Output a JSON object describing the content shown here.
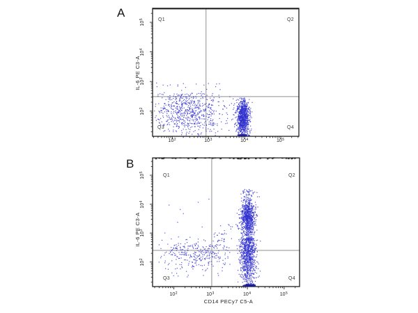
{
  "figure": {
    "panels": [
      {
        "label": "A",
        "y_axis_label": "IL-6 PE C3-A",
        "quadrants": [
          "Q1",
          "Q2",
          "Q3",
          "Q4"
        ]
      },
      {
        "label": "B",
        "y_axis_label": "IL-6 PE C3-A",
        "x_axis_label": "CD14 PECy7 C5-A",
        "quadrants": [
          "Q1",
          "Q2",
          "Q3",
          "Q4"
        ]
      }
    ]
  },
  "chart_data": [
    {
      "type": "scatter",
      "panel": "A",
      "title": "A",
      "xlabel": "",
      "ylabel": "IL-6 PE C3-A",
      "x_scale": "log",
      "y_scale": "log",
      "xlim_log10": [
        1.45,
        5.5
      ],
      "ylim_log10": [
        1.15,
        5.47
      ],
      "x_tick_exponents": [
        2,
        3,
        4,
        5
      ],
      "y_tick_exponents": [
        2,
        3,
        4,
        5
      ],
      "grid": false,
      "legend": false,
      "quadrant_gate_log10": {
        "x": 2.93,
        "y": 2.49
      },
      "quadrant_labels": [
        "Q1",
        "Q2",
        "Q3",
        "Q4"
      ],
      "point_color": "#3232cf",
      "clusters": [
        {
          "name": "il6-negative-scatter-cloud",
          "n": 650,
          "x": {
            "mean": 2.45,
            "sigma": 0.52,
            "clip": [
              1.5,
              3.9
            ]
          },
          "y": {
            "mean": 1.95,
            "sigma": 0.38,
            "clip": [
              1.16,
              2.6
            ]
          }
        },
        {
          "name": "sparse-events-above-gate",
          "n": 35,
          "x": {
            "uniform": [
              1.55,
              3.35
            ]
          },
          "y": {
            "uniform": [
              2.5,
              2.95
            ]
          }
        },
        {
          "name": "cd14-positive-il6-negative-dense-cluster",
          "n": 950,
          "x": {
            "mean": 3.95,
            "sigma": 0.085,
            "clip": [
              3.6,
              4.35
            ]
          },
          "y": {
            "mean": 1.8,
            "sigma": 0.3,
            "clip": [
              1.16,
              2.45
            ]
          }
        },
        {
          "name": "events-pinned-bottom-axis",
          "n": 60,
          "pinned": "bottom",
          "x": {
            "mean": 3.95,
            "sigma": 0.06
          },
          "color": "#22229a",
          "size": 1.6
        }
      ]
    },
    {
      "type": "scatter",
      "panel": "B",
      "title": "B",
      "xlabel": "CD14 PECy7 C5-A",
      "ylabel": "IL-6 PE C3-A",
      "x_scale": "log",
      "y_scale": "log",
      "xlim_log10": [
        1.42,
        5.42
      ],
      "ylim_log10": [
        1.15,
        5.6
      ],
      "x_tick_exponents": [
        2,
        3,
        4,
        5
      ],
      "y_tick_exponents": [
        2,
        3,
        4,
        5
      ],
      "grid": false,
      "legend": false,
      "quadrant_gate_log10": {
        "x": 3.03,
        "y": 2.4
      },
      "quadrant_labels": [
        "Q1",
        "Q2",
        "Q3",
        "Q4"
      ],
      "point_color": "#3232cf",
      "clusters": [
        {
          "name": "cd14-positive-il6-positive-band-upper",
          "n": 850,
          "x": {
            "mean": 4.02,
            "sigma": 0.1,
            "clip": [
              3.7,
              4.4
            ]
          },
          "y": {
            "mean": 3.55,
            "sigma": 0.35,
            "clip": [
              2.5,
              4.15
            ]
          }
        },
        {
          "name": "cd14-positive-band-lower",
          "n": 900,
          "x": {
            "mean": 4.02,
            "sigma": 0.11,
            "clip": [
              3.7,
              4.4
            ]
          },
          "y": {
            "mean": 2.3,
            "sigma": 0.55,
            "clip": [
              1.16,
              2.85
            ]
          }
        },
        {
          "name": "band-top-tail",
          "n": 60,
          "x": {
            "mean": 4.02,
            "sigma": 0.12,
            "clip": [
              3.75,
              4.35
            ]
          },
          "y": {
            "uniform": [
              4.1,
              4.52
            ]
          }
        },
        {
          "name": "negative-scatter-cloud",
          "n": 300,
          "x": {
            "mean": 2.55,
            "sigma": 0.5,
            "clip": [
              1.5,
              3.55
            ]
          },
          "y": {
            "mean": 2.25,
            "sigma": 0.28,
            "clip": [
              1.4,
              2.8
            ]
          }
        },
        {
          "name": "diagonal-trail-toward-band",
          "n": 70,
          "trail": {
            "x0": 2.95,
            "y0": 2.45,
            "dx": 1.0,
            "dy": 1.1,
            "jx": 0.12,
            "jy": 0.15
          }
        },
        {
          "name": "sparse-q1-events",
          "n": 10,
          "x": {
            "uniform": [
              1.6,
              3.0
            ]
          },
          "y": {
            "uniform": [
              2.8,
              4.2
            ]
          }
        },
        {
          "name": "events-pinned-bottom-axis",
          "n": 160,
          "pinned": "bottom",
          "x": {
            "mean": 4.05,
            "sigma": 0.07
          },
          "color": "#1c1c90",
          "size": 1.7
        },
        {
          "name": "offscale-events-pinned-top-edge",
          "n": 44,
          "pinned": "top",
          "x": {
            "uniform": [
              1.5,
              5.38
            ]
          },
          "color": "#1b1b1b",
          "w": 2.6,
          "h": 1.4
        }
      ]
    }
  ]
}
